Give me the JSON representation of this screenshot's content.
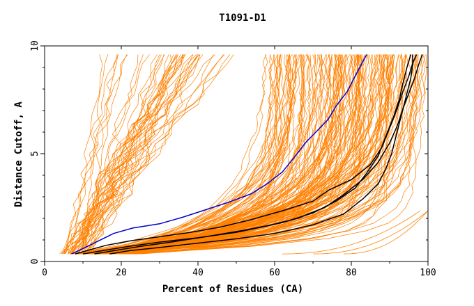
{
  "chart_data": {
    "type": "line",
    "title": "T1091-D1",
    "xlabel": "Percent of Residues (CA)",
    "ylabel": "Distance Cutoff, A",
    "xlim": [
      0,
      100
    ],
    "ylim": [
      0,
      10
    ],
    "xticks": [
      0,
      20,
      40,
      60,
      80,
      100
    ],
    "yticks": [
      0,
      5,
      10
    ],
    "grid": false,
    "legend": "none",
    "colors": {
      "models": "#ff8000",
      "highlight": "#0000cc",
      "reference": "#000000",
      "axes": "#000000"
    },
    "series": [
      {
        "role": "highlight",
        "x": [
          7,
          10,
          14,
          18,
          23,
          30,
          36,
          42,
          48,
          54,
          58,
          62,
          65,
          68,
          71,
          74,
          76,
          79,
          81,
          84
        ],
        "y": [
          0.35,
          0.6,
          0.95,
          1.3,
          1.55,
          1.75,
          2.05,
          2.4,
          2.75,
          3.15,
          3.6,
          4.15,
          4.8,
          5.5,
          6.05,
          6.6,
          7.2,
          7.9,
          8.6,
          9.6
        ]
      },
      {
        "role": "reference",
        "x": [
          8,
          12,
          16,
          22,
          30,
          38,
          46,
          54,
          62,
          70,
          74,
          80,
          85,
          88,
          90,
          92,
          93.5,
          95,
          96,
          97
        ],
        "y": [
          0.35,
          0.55,
          0.75,
          0.95,
          1.15,
          1.35,
          1.6,
          1.95,
          2.35,
          2.8,
          3.3,
          3.8,
          4.5,
          5.3,
          6.2,
          7.1,
          7.9,
          8.6,
          9.2,
          9.6
        ]
      },
      {
        "role": "reference",
        "x": [
          10,
          15,
          22,
          30,
          40,
          50,
          58,
          66,
          73,
          78,
          83,
          87,
          90,
          92,
          93.5,
          95,
          96.5,
          97.5,
          98.5
        ],
        "y": [
          0.35,
          0.5,
          0.7,
          0.9,
          1.1,
          1.35,
          1.65,
          2.0,
          2.5,
          3.1,
          3.8,
          4.6,
          5.5,
          6.3,
          7.1,
          7.8,
          8.5,
          9.1,
          9.6
        ]
      },
      {
        "role": "reference",
        "x": [
          13,
          18,
          25,
          33,
          42,
          52,
          62,
          70,
          76,
          81,
          84,
          87,
          89,
          91,
          92.5,
          93.5,
          94.5,
          95.5
        ],
        "y": [
          0.35,
          0.5,
          0.7,
          0.9,
          1.15,
          1.45,
          1.8,
          2.25,
          2.8,
          3.4,
          4.1,
          4.9,
          5.8,
          6.7,
          7.5,
          8.3,
          9.0,
          9.6
        ]
      },
      {
        "role": "reference",
        "x": [
          17,
          22,
          30,
          40,
          50,
          60,
          70,
          78,
          83,
          87,
          89,
          90.5,
          91.5,
          92.5,
          93.5,
          94.5,
          95.5,
          96,
          96
        ],
        "y": [
          0.35,
          0.5,
          0.65,
          0.85,
          1.05,
          1.3,
          1.7,
          2.2,
          2.9,
          3.6,
          4.3,
          5.0,
          5.7,
          6.4,
          7.1,
          7.8,
          8.5,
          9.1,
          9.6
        ]
      }
    ]
  }
}
